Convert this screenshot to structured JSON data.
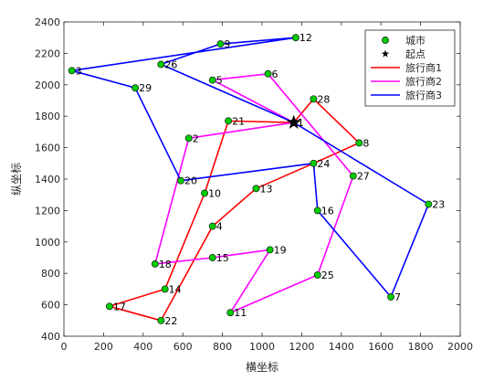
{
  "chart_data": {
    "type": "scatter",
    "title": "",
    "xlabel": "横坐标",
    "ylabel": "纵坐标",
    "xlim": [
      0,
      2000
    ],
    "ylim": [
      400,
      2400
    ],
    "xticks": [
      0,
      200,
      400,
      600,
      800,
      1000,
      1200,
      1400,
      1600,
      1800,
      2000
    ],
    "yticks": [
      400,
      600,
      800,
      1000,
      1200,
      1400,
      1600,
      1800,
      2000,
      2200,
      2400
    ],
    "grid": false,
    "legend_position": "top-right",
    "cities": [
      {
        "id": "1",
        "x": 1160,
        "y": 1760
      },
      {
        "id": "2",
        "x": 630,
        "y": 1660
      },
      {
        "id": "3",
        "x": 40,
        "y": 2090
      },
      {
        "id": "4",
        "x": 750,
        "y": 1100
      },
      {
        "id": "5",
        "x": 750,
        "y": 2030
      },
      {
        "id": "6",
        "x": 1030,
        "y": 2070
      },
      {
        "id": "7",
        "x": 1650,
        "y": 650
      },
      {
        "id": "8",
        "x": 1490,
        "y": 1630
      },
      {
        "id": "9",
        "x": 790,
        "y": 2260
      },
      {
        "id": "10",
        "x": 710,
        "y": 1310
      },
      {
        "id": "11",
        "x": 840,
        "y": 550
      },
      {
        "id": "12",
        "x": 1170,
        "y": 2300
      },
      {
        "id": "13",
        "x": 970,
        "y": 1340
      },
      {
        "id": "14",
        "x": 510,
        "y": 700
      },
      {
        "id": "15",
        "x": 750,
        "y": 900
      },
      {
        "id": "16",
        "x": 1280,
        "y": 1200
      },
      {
        "id": "17",
        "x": 230,
        "y": 590
      },
      {
        "id": "18",
        "x": 460,
        "y": 860
      },
      {
        "id": "19",
        "x": 1040,
        "y": 950
      },
      {
        "id": "20",
        "x": 590,
        "y": 1390
      },
      {
        "id": "21",
        "x": 830,
        "y": 1770
      },
      {
        "id": "22",
        "x": 490,
        "y": 500
      },
      {
        "id": "23",
        "x": 1840,
        "y": 1240
      },
      {
        "id": "24",
        "x": 1260,
        "y": 1500
      },
      {
        "id": "25",
        "x": 1280,
        "y": 790
      },
      {
        "id": "26",
        "x": 490,
        "y": 2130
      },
      {
        "id": "27",
        "x": 1460,
        "y": 1420
      },
      {
        "id": "28",
        "x": 1260,
        "y": 1910
      },
      {
        "id": "29",
        "x": 360,
        "y": 1980
      }
    ],
    "start": {
      "x": 1160,
      "y": 1760
    },
    "series": [
      {
        "name": "旅行商1",
        "color": "#ff0000",
        "route": [
          "1",
          "21",
          "10",
          "14",
          "17",
          "22",
          "4",
          "13",
          "24",
          "8",
          "28",
          "1"
        ]
      },
      {
        "name": "旅行商2",
        "color": "#ff00ff",
        "route": [
          "1",
          "5",
          "6",
          "27",
          "25",
          "11",
          "19",
          "15",
          "18",
          "2",
          "1"
        ]
      },
      {
        "name": "旅行商3",
        "color": "#0000ff",
        "route": [
          "1",
          "23",
          "7",
          "16",
          "24",
          "20",
          "29",
          "3",
          "12",
          "9",
          "26",
          "1"
        ]
      }
    ],
    "legend": [
      {
        "label": "城市",
        "marker": "circle",
        "color": "#00cc00"
      },
      {
        "label": "起点",
        "marker": "star",
        "color": "#000000"
      },
      {
        "label": "旅行商1",
        "marker": "line",
        "color": "#ff0000"
      },
      {
        "label": "旅行商2",
        "marker": "line",
        "color": "#ff00ff"
      },
      {
        "label": "旅行商3",
        "marker": "line",
        "color": "#0000ff"
      }
    ]
  }
}
